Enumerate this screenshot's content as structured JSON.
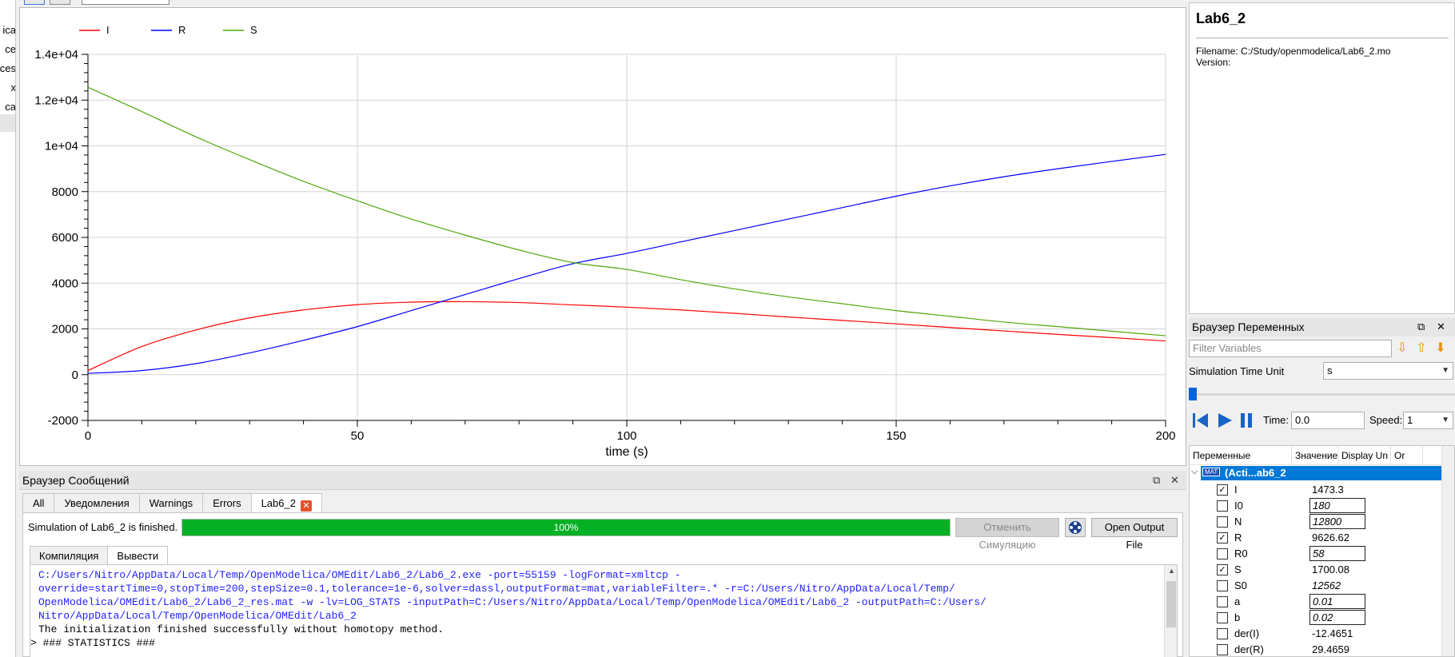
{
  "left_panel": {
    "items": [
      "Modelica",
      "Complex",
      "ModelicaServices",
      "Complex",
      "OpenModelica"
    ],
    "fragments": [
      "ica",
      "ce",
      "ices",
      "x",
      "ca"
    ]
  },
  "chart_data": {
    "type": "line",
    "xlabel": "time (s)",
    "ylabel": "",
    "xlim": [
      0,
      200
    ],
    "ylim": [
      -2000,
      14000
    ],
    "x_ticks": [
      "0",
      "50",
      "100",
      "150",
      "200"
    ],
    "y_ticks": [
      "-2000",
      "0",
      "2000",
      "4000",
      "6000",
      "8000",
      "1e+04",
      "1.2e+04",
      "1.4e+04"
    ],
    "legend_position": "top-left",
    "grid": true,
    "series": [
      {
        "name": "I",
        "color": "#ff0000",
        "x": [
          0,
          10,
          20,
          30,
          40,
          50,
          60,
          70,
          80,
          90,
          100,
          110,
          120,
          130,
          140,
          150,
          160,
          170,
          180,
          190,
          200
        ],
        "values": [
          180,
          1230,
          1950,
          2480,
          2830,
          3060,
          3170,
          3190,
          3150,
          3050,
          2950,
          2830,
          2680,
          2520,
          2370,
          2220,
          2060,
          1910,
          1760,
          1620,
          1473
        ]
      },
      {
        "name": "R",
        "color": "#0000ff",
        "x": [
          0,
          10,
          20,
          30,
          40,
          50,
          60,
          70,
          80,
          90,
          100,
          110,
          120,
          130,
          140,
          150,
          160,
          170,
          180,
          190,
          200
        ],
        "values": [
          58,
          180,
          480,
          950,
          1500,
          2100,
          2800,
          3500,
          4200,
          4850,
          5300,
          5800,
          6300,
          6800,
          7300,
          7800,
          8250,
          8650,
          9000,
          9320,
          9627
        ]
      },
      {
        "name": "S",
        "color": "#4fa70a",
        "x": [
          0,
          10,
          20,
          30,
          40,
          50,
          60,
          70,
          80,
          90,
          100,
          110,
          120,
          130,
          140,
          150,
          160,
          170,
          180,
          190,
          200
        ],
        "values": [
          12562,
          11500,
          10400,
          9400,
          8450,
          7600,
          6800,
          6100,
          5450,
          4900,
          4600,
          4150,
          3750,
          3400,
          3100,
          2800,
          2550,
          2300,
          2100,
          1900,
          1700
        ]
      }
    ]
  },
  "messages": {
    "title": "Браузер Сообщений",
    "tabs": [
      "All",
      "Уведомления",
      "Warnings",
      "Errors",
      "Lab6_2"
    ],
    "status": "Simulation of Lab6_2 is finished.",
    "progress": 100,
    "progress_label": "100%",
    "cancel_label": "Отменить Симуляцию",
    "open_output_label": "Open Output File",
    "sub_tabs": [
      "Компиляция",
      "Вывести"
    ],
    "console_lines": [
      "C:/Users/Nitro/AppData/Local/Temp/OpenModelica/OMEdit/Lab6_2/Lab6_2.exe -port=55159 -logFormat=xmltcp -",
      "override=startTime=0,stopTime=200,stepSize=0.1,tolerance=1e-6,solver=dassl,outputFormat=mat,variableFilter=.* -r=C:/Users/Nitro/AppData/Local/Temp/",
      "OpenModelica/OMEdit/Lab6_2/Lab6_2_res.mat -w -lv=LOG_STATS -inputPath=C:/Users/Nitro/AppData/Local/Temp/OpenModelica/OMEdit/Lab6_2 -outputPath=C:/Users/",
      "Nitro/AppData/Local/Temp/OpenModelica/OMEdit/Lab6_2"
    ],
    "console_info": "The initialization finished successfully without homotopy method.",
    "console_stats": "### STATISTICS ###"
  },
  "info": {
    "title": "Lab6_2",
    "filename": "Filename: C:/Study/openmodelica/Lab6_2.mo",
    "version": "Version:"
  },
  "variables": {
    "title": "Браузер Переменных",
    "filter_placeholder": "Filter Variables",
    "time_unit_label": "Simulation Time Unit",
    "time_unit": "s",
    "time_label": "Time:",
    "time_value": "0.0",
    "speed_label": "Speed:",
    "speed_value": "1",
    "columns": [
      "Переменные",
      "Значение",
      "Display Un",
      "Or"
    ],
    "root": "(Acti...ab6_2",
    "rows": [
      {
        "name": "I",
        "value": "1473.3",
        "checked": true,
        "editable": false,
        "italic": false
      },
      {
        "name": "I0",
        "value": "180",
        "checked": false,
        "editable": true,
        "italic": true
      },
      {
        "name": "N",
        "value": "12800",
        "checked": false,
        "editable": true,
        "italic": true
      },
      {
        "name": "R",
        "value": "9626.62",
        "checked": true,
        "editable": false,
        "italic": false
      },
      {
        "name": "R0",
        "value": "58",
        "checked": false,
        "editable": true,
        "italic": true
      },
      {
        "name": "S",
        "value": "1700.08",
        "checked": true,
        "editable": false,
        "italic": false
      },
      {
        "name": "S0",
        "value": "12562",
        "checked": false,
        "editable": false,
        "italic": true
      },
      {
        "name": "a",
        "value": "0.01",
        "checked": false,
        "editable": true,
        "italic": true
      },
      {
        "name": "b",
        "value": "0.02",
        "checked": false,
        "editable": true,
        "italic": true
      },
      {
        "name": "der(I)",
        "value": "-12.4651",
        "checked": false,
        "editable": false,
        "italic": false
      },
      {
        "name": "der(R)",
        "value": "29.4659",
        "checked": false,
        "editable": false,
        "italic": false
      }
    ]
  }
}
